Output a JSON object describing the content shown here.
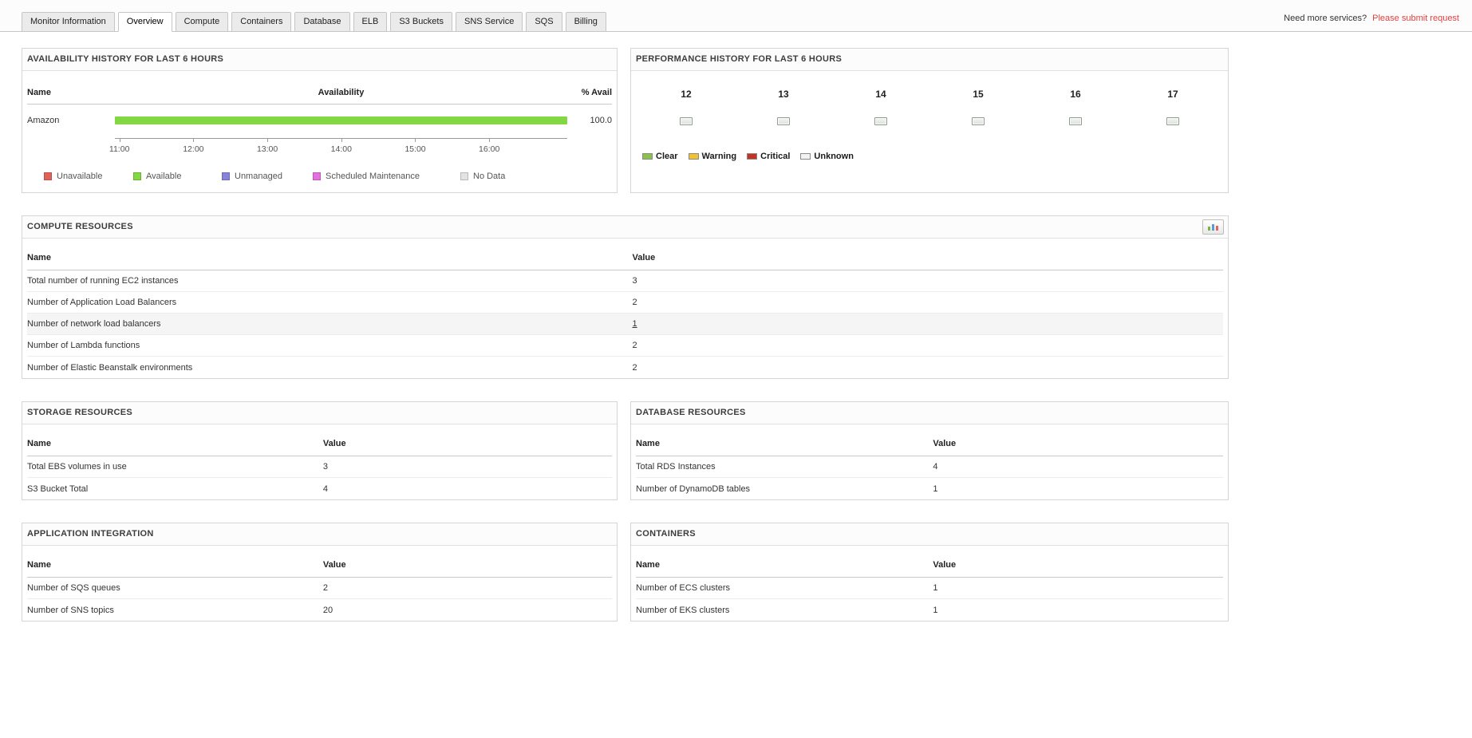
{
  "header": {
    "need_more_text": "Need more services?",
    "submit_request_text": "Please submit request",
    "link_color": "#e43f3f"
  },
  "tabs": [
    {
      "label": "Monitor Information",
      "active": false
    },
    {
      "label": "Overview",
      "active": true
    },
    {
      "label": "Compute",
      "active": false
    },
    {
      "label": "Containers",
      "active": false
    },
    {
      "label": "Database",
      "active": false
    },
    {
      "label": "ELB",
      "active": false
    },
    {
      "label": "S3 Buckets",
      "active": false
    },
    {
      "label": "SNS Service",
      "active": false
    },
    {
      "label": "SQS",
      "active": false
    },
    {
      "label": "Billing",
      "active": false
    }
  ],
  "availability": {
    "title": "AVAILABILITY HISTORY FOR LAST 6 HOURS",
    "columns": {
      "name": "Name",
      "availability": "Availability",
      "percent": "% Avail"
    },
    "rows": [
      {
        "name": "Amazon",
        "percent": "100.0",
        "bar_percent": 100,
        "bar_color": "#82d742"
      }
    ],
    "time_ticks": [
      "11:00",
      "12:00",
      "13:00",
      "14:00",
      "15:00",
      "16:00"
    ],
    "legend": [
      {
        "label": "Unavailable",
        "color": "#e0635a"
      },
      {
        "label": "Available",
        "color": "#82d742"
      },
      {
        "label": "Unmanaged",
        "color": "#8783d9"
      },
      {
        "label": "Scheduled Maintenance",
        "color": "#e46fe0"
      },
      {
        "label": "No Data",
        "color": "#e3e3e3"
      }
    ]
  },
  "performance": {
    "title": "PERFORMANCE HISTORY FOR LAST 6 HOURS",
    "hours": [
      "12",
      "13",
      "14",
      "15",
      "16",
      "17"
    ],
    "hour_status": [
      "unknown",
      "unknown",
      "unknown",
      "unknown",
      "unknown",
      "unknown"
    ],
    "legend": [
      {
        "label": "Clear",
        "color": "#8bc34a"
      },
      {
        "label": "Warning",
        "color": "#f2c12e"
      },
      {
        "label": "Critical",
        "color": "#c63321"
      },
      {
        "label": "Unknown",
        "color": "#f2f2f2"
      }
    ]
  },
  "compute": {
    "title": "COMPUTE RESOURCES",
    "report_button_icon": "bar-chart-icon",
    "columns": {
      "name": "Name",
      "value": "Value"
    },
    "rows": [
      {
        "name": "Total number of running EC2 instances",
        "value": "3"
      },
      {
        "name": "Number of Application Load Balancers",
        "value": "2"
      },
      {
        "name": "Number of network load balancers",
        "value": "1",
        "highlight": true,
        "link": true
      },
      {
        "name": "Number of Lambda functions",
        "value": "2"
      },
      {
        "name": "Number of Elastic Beanstalk environments",
        "value": "2"
      }
    ]
  },
  "storage": {
    "title": "STORAGE RESOURCES",
    "columns": {
      "name": "Name",
      "value": "Value"
    },
    "rows": [
      {
        "name": "Total EBS volumes in use",
        "value": "3"
      },
      {
        "name": "S3 Bucket Total",
        "value": "4"
      }
    ]
  },
  "database": {
    "title": "DATABASE RESOURCES",
    "columns": {
      "name": "Name",
      "value": "Value"
    },
    "rows": [
      {
        "name": "Total RDS Instances",
        "value": "4"
      },
      {
        "name": "Number of DynamoDB tables",
        "value": "1"
      }
    ]
  },
  "integration": {
    "title": "APPLICATION INTEGRATION",
    "columns": {
      "name": "Name",
      "value": "Value"
    },
    "rows": [
      {
        "name": "Number of SQS queues",
        "value": "2"
      },
      {
        "name": "Number of SNS topics",
        "value": "20"
      }
    ]
  },
  "containers": {
    "title": "CONTAINERS",
    "columns": {
      "name": "Name",
      "value": "Value"
    },
    "rows": [
      {
        "name": "Number of ECS clusters",
        "value": "1"
      },
      {
        "name": "Number of EKS clusters",
        "value": "1"
      }
    ]
  }
}
